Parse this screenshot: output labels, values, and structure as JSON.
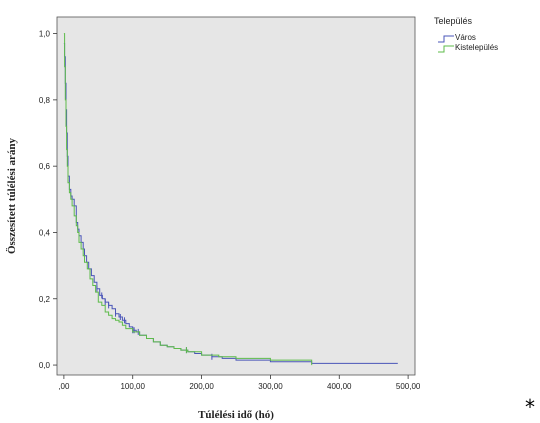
{
  "chart_data": {
    "type": "line",
    "subtype": "kaplan-meier-step",
    "xlabel": "Túlélési idő (hó)",
    "ylabel": "Összesített túlélési arány",
    "xlim": [
      -10,
      510
    ],
    "ylim": [
      -0.03,
      1.05
    ],
    "xticks": [
      0,
      100,
      200,
      300,
      400,
      500
    ],
    "xtick_labels": [
      ",00",
      "100,00",
      "200,00",
      "300,00",
      "400,00",
      "500,00"
    ],
    "yticks": [
      0,
      0.2,
      0.4,
      0.6,
      0.8,
      1.0
    ],
    "ytick_labels": [
      "0,0",
      "0,2",
      "0,4",
      "0,6",
      "0,8",
      "1,0"
    ],
    "grid": false,
    "plot_background": "#e6e6e6",
    "legend": {
      "title": "Település",
      "position": "top-right-outside"
    },
    "series": [
      {
        "name": "Város",
        "color": "#4a55b8",
        "x": [
          0,
          1,
          2,
          3,
          4,
          5,
          6,
          8,
          10,
          12,
          15,
          18,
          20,
          22,
          25,
          28,
          30,
          33,
          36,
          40,
          44,
          48,
          52,
          56,
          60,
          65,
          70,
          75,
          80,
          85,
          90,
          95,
          100,
          105,
          110,
          120,
          130,
          140,
          150,
          160,
          170,
          180,
          190,
          200,
          215,
          230,
          250,
          300,
          360,
          400,
          485
        ],
        "y": [
          0.97,
          0.93,
          0.85,
          0.77,
          0.7,
          0.63,
          0.57,
          0.53,
          0.51,
          0.5,
          0.48,
          0.43,
          0.41,
          0.39,
          0.37,
          0.35,
          0.33,
          0.31,
          0.29,
          0.27,
          0.25,
          0.23,
          0.21,
          0.2,
          0.19,
          0.18,
          0.17,
          0.155,
          0.145,
          0.135,
          0.125,
          0.115,
          0.105,
          0.1,
          0.09,
          0.08,
          0.07,
          0.06,
          0.055,
          0.05,
          0.045,
          0.04,
          0.035,
          0.03,
          0.025,
          0.02,
          0.015,
          0.01,
          0.005,
          0.005,
          0.005
        ],
        "censored_x": [
          48,
          55,
          60,
          65,
          75,
          82,
          88,
          100,
          102,
          108,
          178,
          215
        ]
      },
      {
        "name": "Kistelepülés",
        "color": "#5dbb4a",
        "x": [
          0,
          1,
          2,
          3,
          4,
          5,
          6,
          8,
          10,
          12,
          15,
          18,
          20,
          22,
          25,
          28,
          30,
          34,
          38,
          42,
          46,
          50,
          55,
          60,
          65,
          70,
          75,
          80,
          85,
          90,
          100,
          110,
          120,
          130,
          140,
          150,
          160,
          170,
          180,
          190,
          200,
          210,
          225,
          250,
          300,
          340,
          360
        ],
        "y": [
          1.0,
          0.9,
          0.8,
          0.72,
          0.65,
          0.6,
          0.55,
          0.52,
          0.5,
          0.48,
          0.45,
          0.42,
          0.4,
          0.37,
          0.35,
          0.33,
          0.31,
          0.29,
          0.26,
          0.24,
          0.22,
          0.19,
          0.18,
          0.16,
          0.15,
          0.14,
          0.135,
          0.13,
          0.12,
          0.11,
          0.1,
          0.09,
          0.08,
          0.07,
          0.06,
          0.055,
          0.05,
          0.045,
          0.04,
          0.04,
          0.03,
          0.03,
          0.025,
          0.02,
          0.015,
          0.015,
          0.0
        ],
        "censored_x": [
          178
        ]
      }
    ],
    "annotations": [
      "*"
    ]
  }
}
